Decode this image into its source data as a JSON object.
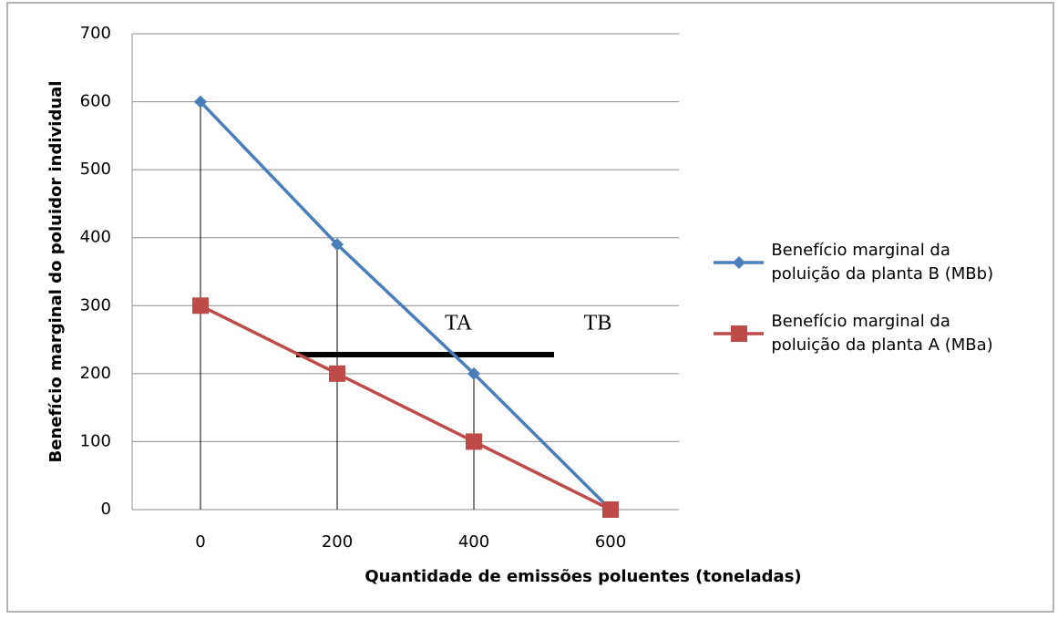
{
  "chart_data": {
    "type": "line",
    "y_label": "Benefício marginal do poluidor individual",
    "x_label": "Quantidade de emissões poluentes (toneladas)",
    "categories": [
      0,
      200,
      400,
      600
    ],
    "series": [
      {
        "name": "Benefício marginal da poluição da planta B (MBb)",
        "color": "#4a7ebb",
        "marker": "diamond",
        "values": [
          600,
          390,
          200,
          0
        ]
      },
      {
        "name": "Benefício marginal da poluição da planta A (MBa)",
        "color": "#be4b48",
        "marker": "square",
        "values": [
          300,
          200,
          100,
          0
        ]
      }
    ],
    "ylim": [
      0,
      700
    ],
    "yticks": [
      0,
      100,
      200,
      300,
      400,
      500,
      600,
      700
    ],
    "grid": true,
    "drop_lines": true,
    "legend": "right",
    "annotations": [
      "TA",
      "TB"
    ]
  }
}
